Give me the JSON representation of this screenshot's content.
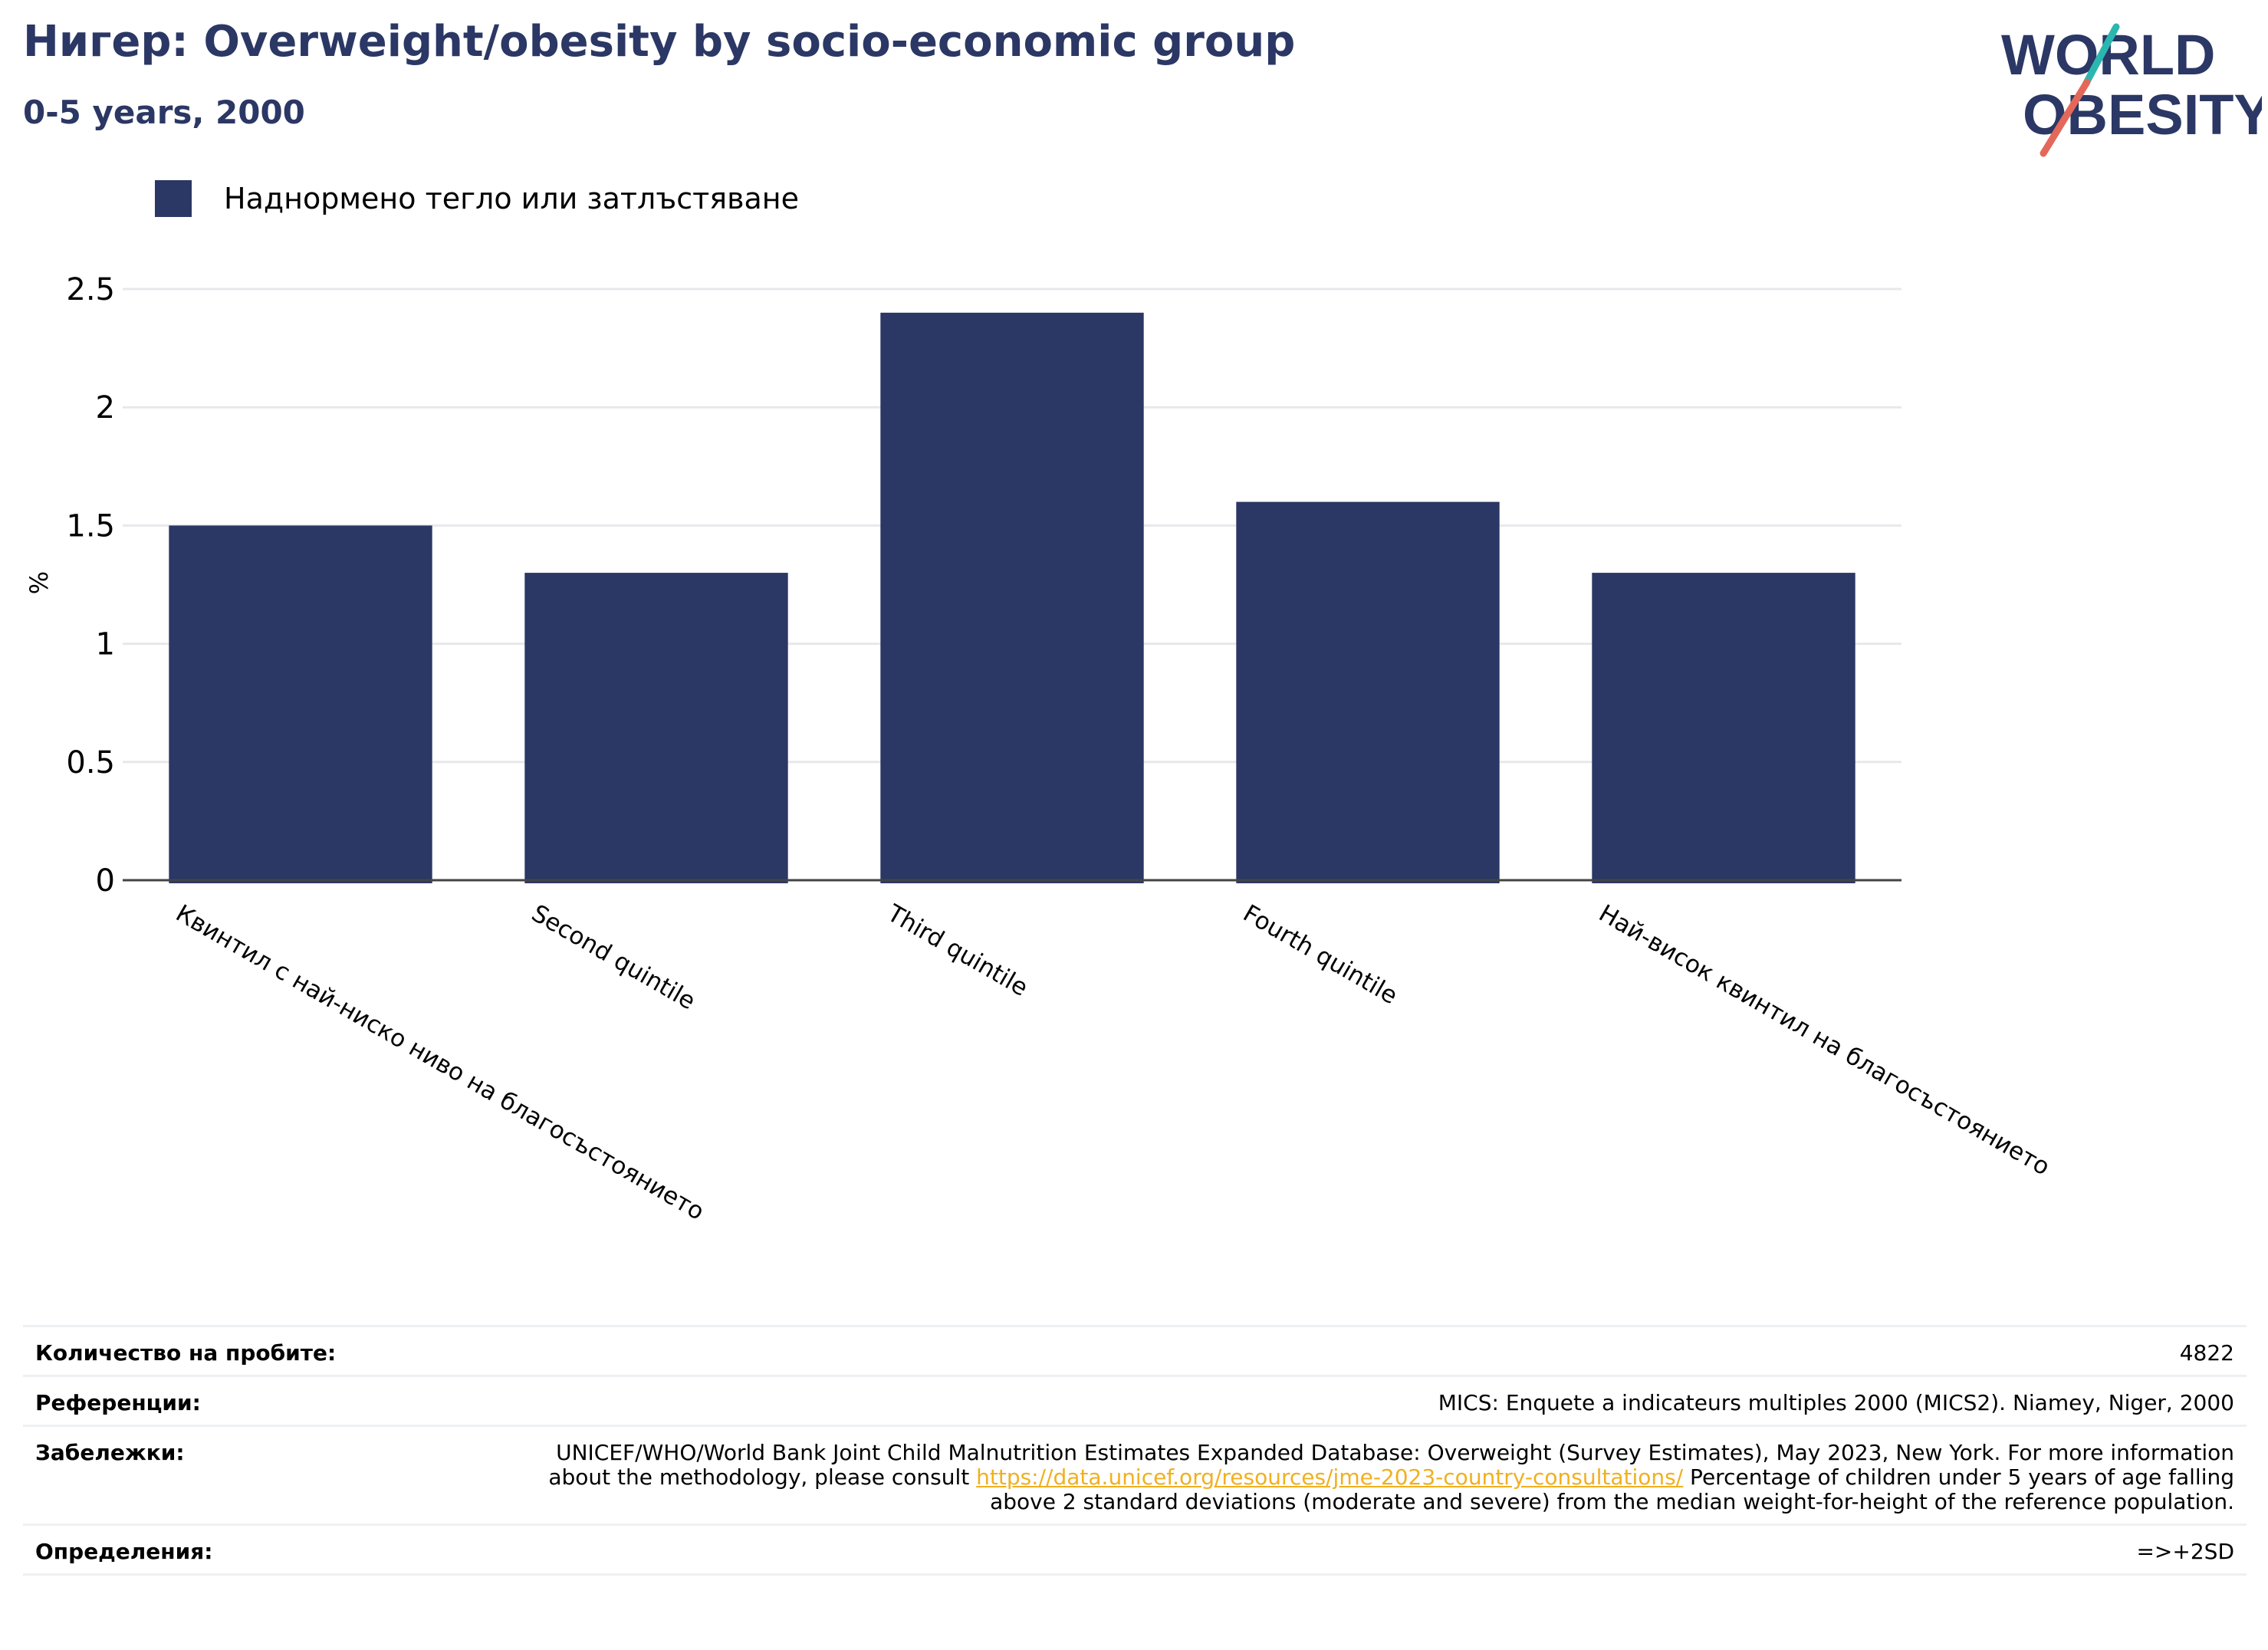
{
  "header": {
    "title": "Нигер: Overweight/obesity by socio-economic group",
    "subtitle": "0-5 years, 2000"
  },
  "logo": {
    "line1": "WORLD",
    "line2": "OBESITY",
    "text_color": "#2b3764",
    "accent_teal": "#2ab7b0",
    "accent_coral": "#e4685a"
  },
  "legend": {
    "label": "Наднормено тегло или затлъстяване",
    "color": "#2b3764"
  },
  "chart_data": {
    "type": "bar",
    "categories": [
      "Квинтил с най-ниско ниво на благосъстоянието",
      "Second quintile",
      "Third quintile",
      "Fourth quintile",
      "Най-висок квинтил на благосъстоянието"
    ],
    "series": [
      {
        "name": "Наднормено тегло или затлъстяване",
        "values": [
          1.5,
          1.3,
          2.4,
          1.6,
          1.3
        ]
      }
    ],
    "ylabel": "%",
    "ylim": [
      0,
      2.5
    ],
    "yticks": [
      "0",
      "0.5",
      "1",
      "1.5",
      "2",
      "2.5"
    ],
    "grid": true,
    "bar_color": "#2b3764",
    "legend_position": "top-left"
  },
  "info_table": {
    "rows": [
      {
        "label": "Количество на пробите:",
        "value": "4822"
      },
      {
        "label": "Референции:",
        "value": "MICS: Enquete a indicateurs multiples 2000 (MICS2). Niamey, Niger, 2000"
      },
      {
        "label": "Забележки:",
        "value_before": "UNICEF/WHO/World Bank Joint Child Malnutrition Estimates Expanded Database: Overweight (Survey Estimates), May 2023, New York. For more information about the methodology, please consult ",
        "link": "https://data.unicef.org/resources/jme-2023-country-consultations/",
        "value_after": " Percentage of children under 5 years of age falling above 2 standard deviations (moderate and severe) from the median weight-for-height of the reference population."
      },
      {
        "label": "Определения:",
        "value": "=>+2SD"
      }
    ]
  }
}
